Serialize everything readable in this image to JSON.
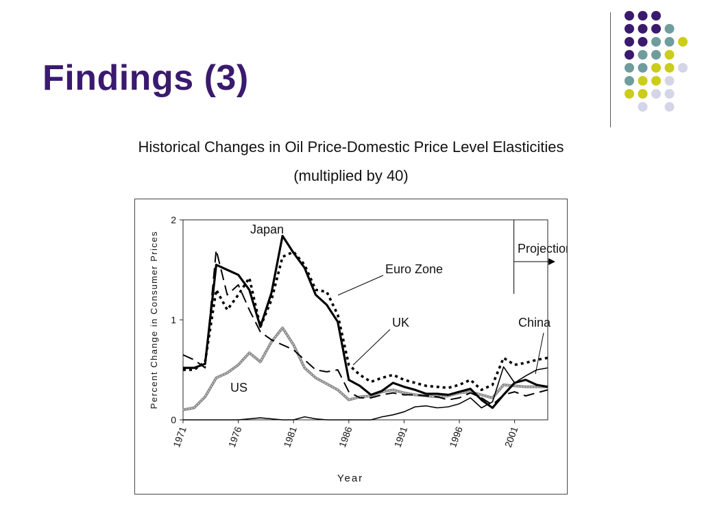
{
  "slide": {
    "title": "Findings (3)",
    "subtitle_line1": "Historical Changes in Oil Price-Domestic Price Level Elasticities",
    "subtitle_line2": "(multiplied by 40)"
  },
  "decoration": {
    "dot_colors": {
      "purple": "#3a1a6e",
      "teal": "#6f9c9c",
      "yellow": "#cccc1a",
      "lavender": "#d5d5e8"
    },
    "dot_rows": [
      [
        "purple",
        "purple",
        "purple",
        "none",
        "none"
      ],
      [
        "purple",
        "purple",
        "purple",
        "teal",
        "none"
      ],
      [
        "purple",
        "purple",
        "teal",
        "teal",
        "yellow"
      ],
      [
        "purple",
        "teal",
        "teal",
        "yellow",
        "none"
      ],
      [
        "teal",
        "teal",
        "yellow",
        "yellow",
        "lavender"
      ],
      [
        "teal",
        "yellow",
        "yellow",
        "lavender",
        "none"
      ],
      [
        "yellow",
        "yellow",
        "lavender",
        "lavender",
        "none"
      ],
      [
        "none",
        "lavender",
        "none",
        "lavender",
        "none"
      ]
    ]
  },
  "chart_data": {
    "type": "line",
    "xlabel": "Year",
    "ylabel": "Percent Change in Consumer Prices",
    "xlim": [
      1971,
      2004
    ],
    "ylim": [
      0,
      2
    ],
    "xticks": [
      "1971",
      "1976",
      "1981",
      "1986",
      "1991",
      "1996",
      "2001"
    ],
    "yticks": [
      "0",
      "1",
      "2"
    ],
    "grid": false,
    "x": [
      1971,
      1972,
      1973,
      1974,
      1975,
      1976,
      1977,
      1978,
      1979,
      1980,
      1981,
      1982,
      1983,
      1984,
      1985,
      1986,
      1987,
      1988,
      1989,
      1990,
      1991,
      1992,
      1993,
      1994,
      1995,
      1996,
      1997,
      1998,
      1999,
      2000,
      2001,
      2002,
      2003,
      2004
    ],
    "series": [
      {
        "name": "Japan",
        "style": "solid-thick",
        "values": [
          0.52,
          0.52,
          0.56,
          1.55,
          1.5,
          1.45,
          1.3,
          0.93,
          1.27,
          1.84,
          1.67,
          1.52,
          1.25,
          1.15,
          0.98,
          0.4,
          0.34,
          0.25,
          0.29,
          0.37,
          0.33,
          0.3,
          0.26,
          0.26,
          0.25,
          0.28,
          0.31,
          0.2,
          0.12,
          0.25,
          0.37,
          0.4,
          0.35,
          0.33
        ]
      },
      {
        "name": "Euro Zone",
        "style": "dotted-thick",
        "values": [
          0.5,
          0.5,
          0.58,
          1.3,
          1.1,
          1.25,
          1.42,
          0.93,
          1.2,
          1.63,
          1.68,
          1.55,
          1.3,
          1.28,
          1.05,
          0.55,
          0.45,
          0.38,
          0.42,
          0.45,
          0.4,
          0.37,
          0.34,
          0.33,
          0.32,
          0.35,
          0.4,
          0.3,
          0.35,
          0.62,
          0.55,
          0.57,
          0.6,
          0.62
        ]
      },
      {
        "name": "UK",
        "style": "long-dash",
        "values": [
          0.65,
          0.6,
          0.52,
          1.7,
          1.25,
          1.35,
          1.1,
          0.88,
          0.8,
          0.75,
          0.7,
          0.6,
          0.5,
          0.48,
          0.5,
          0.28,
          0.22,
          0.22,
          0.25,
          0.27,
          0.25,
          0.25,
          0.24,
          0.23,
          0.2,
          0.22,
          0.27,
          0.22,
          0.15,
          0.25,
          0.28,
          0.24,
          0.27,
          0.3
        ]
      },
      {
        "name": "US",
        "style": "gray-thick",
        "values": [
          0.1,
          0.12,
          0.23,
          0.42,
          0.47,
          0.55,
          0.67,
          0.58,
          0.78,
          0.92,
          0.75,
          0.52,
          0.42,
          0.36,
          0.3,
          0.2,
          0.23,
          0.24,
          0.28,
          0.3,
          0.27,
          0.25,
          0.24,
          0.23,
          0.24,
          0.27,
          0.28,
          0.25,
          0.22,
          0.35,
          0.34,
          0.33,
          0.33,
          0.33
        ]
      },
      {
        "name": "China",
        "style": "solid-thin",
        "values": [
          0.0,
          0.0,
          0.0,
          0.0,
          0.0,
          0.0,
          0.01,
          0.02,
          0.01,
          0.0,
          0.0,
          0.03,
          0.01,
          0.0,
          0.0,
          0.0,
          0.0,
          0.0,
          0.03,
          0.05,
          0.08,
          0.13,
          0.14,
          0.12,
          0.13,
          0.16,
          0.22,
          0.12,
          0.18,
          0.53,
          0.37,
          0.44,
          0.5,
          0.52
        ]
      }
    ],
    "annotations": [
      {
        "text": "Japan",
        "series": "Japan"
      },
      {
        "text": "Euro Zone",
        "series": "Euro Zone"
      },
      {
        "text": "UK",
        "series": "UK"
      },
      {
        "text": "US",
        "series": "US"
      },
      {
        "text": "China",
        "series": "China"
      },
      {
        "text": "Projection",
        "from_year": 2001
      }
    ]
  }
}
